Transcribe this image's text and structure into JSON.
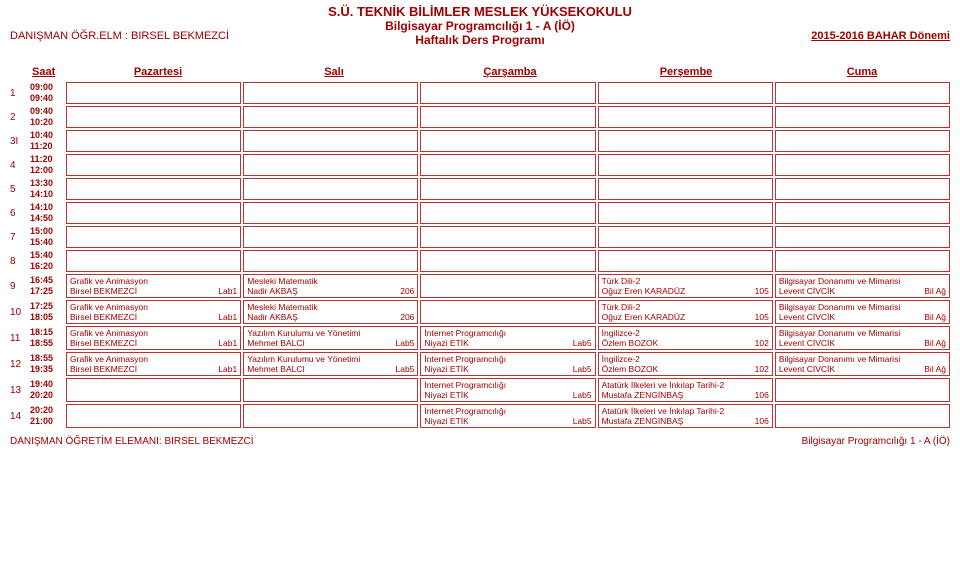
{
  "header": {
    "school": "S.Ü. TEKNİK BİLİMLER MESLEK YÜKSEKOKULU",
    "program": "Bilgisayar Programcılığı 1 - A (İÖ)",
    "subtitle": "Haftalık Ders Programı",
    "advisor": "DANIŞMAN ÖĞR.ELM : BIRSEL BEKMEZCİ",
    "semester": "2015-2016  BAHAR Dönemi"
  },
  "dayHeader": {
    "saat": "Saat",
    "days": [
      "Pazartesi",
      "Salı",
      "Çarşamba",
      "Perşembe",
      "Cuma"
    ]
  },
  "slots": [
    {
      "idx": "1",
      "t1": "09:00",
      "t2": "09:40",
      "cells": [
        {},
        {},
        {},
        {},
        {}
      ]
    },
    {
      "idx": "2",
      "t1": "09:40",
      "t2": "10:20",
      "cells": [
        {},
        {},
        {},
        {},
        {}
      ]
    },
    {
      "idx": "3I",
      "t1": "10:40",
      "t2": "11:20",
      "cells": [
        {},
        {},
        {},
        {},
        {}
      ]
    },
    {
      "idx": "4",
      "t1": "11:20",
      "t2": "12:00",
      "cells": [
        {},
        {},
        {},
        {},
        {}
      ]
    },
    {
      "idx": "5",
      "t1": "13:30",
      "t2": "14:10",
      "cells": [
        {},
        {},
        {},
        {},
        {}
      ]
    },
    {
      "idx": "6",
      "t1": "14:10",
      "t2": "14:50",
      "cells": [
        {},
        {},
        {},
        {},
        {}
      ]
    },
    {
      "idx": "7",
      "t1": "15:00",
      "t2": "15:40",
      "cells": [
        {},
        {},
        {},
        {},
        {}
      ]
    },
    {
      "idx": "8",
      "t1": "15:40",
      "t2": "16:20",
      "cells": [
        {},
        {},
        {},
        {},
        {}
      ]
    },
    {
      "idx": "9",
      "t1": "16:45",
      "t2": "17:25",
      "cells": [
        {
          "l1": "Grafik ve Animasyon",
          "l2a": "Birsel BEKMEZCİ",
          "l2b": "Lab1"
        },
        {
          "l1": "Mesleki Matematik",
          "l2a": "Nadir AKBAŞ",
          "l2b": "206"
        },
        {},
        {
          "l1": "Türk Dili-2",
          "l2a": "Oğuz Eren KARADÜZ",
          "l2b": "105"
        },
        {
          "l1": "Bilgisayar Donanımı ve Mimarisi",
          "l2a": "Levent CİVCİK",
          "l2b": "Bil Ağ"
        }
      ]
    },
    {
      "idx": "10",
      "t1": "17:25",
      "t2": "18:05",
      "cells": [
        {
          "l1": "Grafik ve Animasyon",
          "l2a": "Birsel BEKMEZCİ",
          "l2b": "Lab1"
        },
        {
          "l1": "Mesleki Matematik",
          "l2a": "Nadir AKBAŞ",
          "l2b": "206"
        },
        {},
        {
          "l1": "Türk Dili-2",
          "l2a": "Oğuz Eren KARADÜZ",
          "l2b": "105"
        },
        {
          "l1": "Bilgisayar Donanımı ve Mimarisi",
          "l2a": "Levent CİVCİK",
          "l2b": "Bil Ağ"
        }
      ]
    },
    {
      "idx": "11",
      "t1": "18:15",
      "t2": "18:55",
      "cells": [
        {
          "l1": "Grafik ve Animasyon",
          "l2a": "Birsel BEKMEZCİ",
          "l2b": "Lab1"
        },
        {
          "l1": "Yazılım Kurulumu ve Yönetimi",
          "l2a": "Mehmet BALCI",
          "l2b": "Lab5"
        },
        {
          "l1": "İnternet Programcılığı",
          "l2a": "Niyazi ETİK",
          "l2b": "Lab5"
        },
        {
          "l1": "İngilizce-2",
          "l2a": "Özlem BOZOK",
          "l2b": "102"
        },
        {
          "l1": "Bilgisayar Donanımı ve Mimarisi",
          "l2a": "Levent CİVCİK",
          "l2b": "Bil Ağ"
        }
      ]
    },
    {
      "idx": "12",
      "t1": "18:55",
      "t2": "19:35",
      "cells": [
        {
          "l1": "Grafik ve Animasyon",
          "l2a": "Birsel BEKMEZCİ",
          "l2b": "Lab1"
        },
        {
          "l1": "Yazılım Kurulumu ve Yönetimi",
          "l2a": "Mehmet BALCI",
          "l2b": "Lab5"
        },
        {
          "l1": "İnternet Programcılığı",
          "l2a": "Niyazi ETİK",
          "l2b": "Lab5"
        },
        {
          "l1": "İngilizce-2",
          "l2a": "Özlem BOZOK",
          "l2b": "102"
        },
        {
          "l1": "Bilgisayar Donanımı ve Mimarisi",
          "l2a": "Levent CİVCİK",
          "l2b": "Bil Ağ"
        }
      ]
    },
    {
      "idx": "13",
      "t1": "19:40",
      "t2": "20:20",
      "cells": [
        {},
        {},
        {
          "l1": "İnternet Programcılığı",
          "l2a": "Niyazi ETİK",
          "l2b": "Lab5"
        },
        {
          "l1": "Atatürk İlkeleri ve İnkılap Tarihi-2",
          "l2a": "Mustafa ZENGİNBAŞ",
          "l2b": "106"
        },
        {}
      ]
    },
    {
      "idx": "14",
      "t1": "20:20",
      "t2": "21:00",
      "cells": [
        {},
        {},
        {
          "l1": "İnternet Programcılığı",
          "l2a": "Niyazi ETİK",
          "l2b": "Lab5"
        },
        {
          "l1": "Atatürk İlkeleri ve İnkılap Tarihi-2",
          "l2a": "Mustafa ZENGİNBAŞ",
          "l2b": "106"
        },
        {}
      ]
    }
  ],
  "footer": {
    "left": "DANIŞMAN ÖĞRETİM ELEMANI: BIRSEL BEKMEZCİ",
    "right": "Bilgisayar Programcılığı 1 - A (İÖ)"
  }
}
